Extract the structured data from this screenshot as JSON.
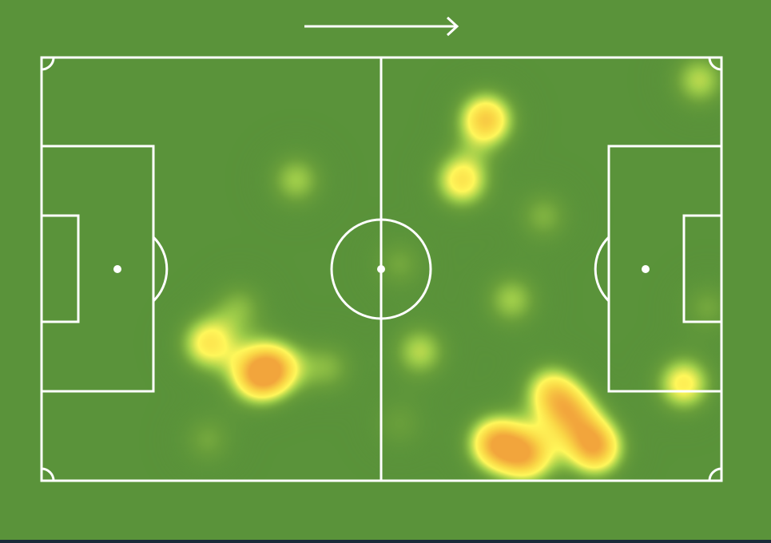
{
  "colors": {
    "grass": "#5a933a",
    "lines": "#ffffff",
    "heat_low": "#9fd04a",
    "heat_mid": "#fff75a",
    "heat_high": "#f2a53c",
    "bottom_bar": "#1a2a38"
  },
  "attack_direction": "right",
  "chart_data": {
    "type": "heatmap",
    "title": "",
    "xlim": [
      0,
      100
    ],
    "ylim": [
      0,
      100
    ],
    "grid": false,
    "points": [
      {
        "x": 65.3,
        "y": 14.7,
        "v": 0.9
      },
      {
        "x": 61.8,
        "y": 28.9,
        "v": 0.75
      },
      {
        "x": 96.7,
        "y": 5.3,
        "v": 0.5
      },
      {
        "x": 37.4,
        "y": 28.9,
        "v": 0.45
      },
      {
        "x": 73.8,
        "y": 37.4,
        "v": 0.35
      },
      {
        "x": 69.1,
        "y": 57.2,
        "v": 0.45
      },
      {
        "x": 24.4,
        "y": 67.5,
        "v": 0.7
      },
      {
        "x": 31.5,
        "y": 75.1,
        "v": 0.8
      },
      {
        "x": 34.4,
        "y": 73.2,
        "v": 0.7
      },
      {
        "x": 42.1,
        "y": 73.2,
        "v": 0.35
      },
      {
        "x": 55.6,
        "y": 69.4,
        "v": 0.5
      },
      {
        "x": 52.6,
        "y": 48.7,
        "v": 0.3
      },
      {
        "x": 74.9,
        "y": 78.9,
        "v": 0.7
      },
      {
        "x": 66.7,
        "y": 91.1,
        "v": 0.95
      },
      {
        "x": 71.5,
        "y": 94.0,
        "v": 0.85
      },
      {
        "x": 81.4,
        "y": 92.1,
        "v": 1.0
      },
      {
        "x": 78.1,
        "y": 84.5,
        "v": 0.7
      },
      {
        "x": 94.4,
        "y": 77.0,
        "v": 0.7
      },
      {
        "x": 24.4,
        "y": 90.2,
        "v": 0.3
      },
      {
        "x": 52.6,
        "y": 86.4,
        "v": 0.25
      },
      {
        "x": 97.9,
        "y": 59.0,
        "v": 0.3
      },
      {
        "x": 29.1,
        "y": 59.0,
        "v": 0.35
      }
    ]
  }
}
